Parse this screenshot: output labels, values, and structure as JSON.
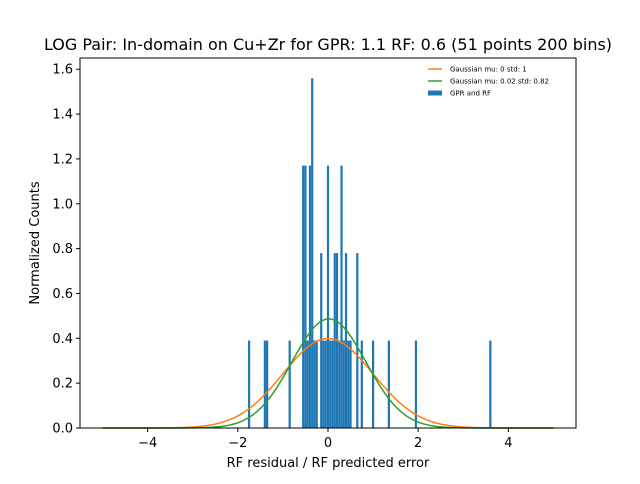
{
  "chart_data": {
    "type": "bar",
    "title": "LOG Pair: In-domain on Cu+Zr for GPR: 1.1 RF: 0.6 (51 points 200 bins)",
    "xlabel": "RF residual / RF predicted error",
    "ylabel": "Normalized Counts",
    "xlim": [
      -5.5,
      5.5
    ],
    "ylim": [
      0,
      1.65
    ],
    "xticks": [
      -4,
      -2,
      0,
      2,
      4
    ],
    "xtick_labels": [
      "−4",
      "−2",
      "0",
      "2",
      "4"
    ],
    "yticks": [
      0.0,
      0.2,
      0.4,
      0.6,
      0.8,
      1.0,
      1.2,
      1.4,
      1.6
    ],
    "ytick_labels": [
      "0.0",
      "0.2",
      "0.4",
      "0.6",
      "0.8",
      "1.0",
      "1.2",
      "1.4",
      "1.6"
    ],
    "grid": false,
    "legend_position": "top-right",
    "bar_width": 0.049,
    "histogram": {
      "name": "GPR and RF",
      "color": "#1f77b4",
      "bars": [
        {
          "x": -1.75,
          "h": 0.39
        },
        {
          "x": -1.4,
          "h": 0.39
        },
        {
          "x": -1.35,
          "h": 0.39
        },
        {
          "x": -0.85,
          "h": 0.39
        },
        {
          "x": -0.55,
          "h": 1.17
        },
        {
          "x": -0.5,
          "h": 1.17
        },
        {
          "x": -0.45,
          "h": 0.39
        },
        {
          "x": -0.4,
          "h": 1.17
        },
        {
          "x": -0.35,
          "h": 1.56
        },
        {
          "x": -0.3,
          "h": 0.39
        },
        {
          "x": -0.25,
          "h": 0.39
        },
        {
          "x": -0.15,
          "h": 0.78
        },
        {
          "x": -0.1,
          "h": 0.39
        },
        {
          "x": -0.05,
          "h": 0.39
        },
        {
          "x": 0.0,
          "h": 1.17
        },
        {
          "x": 0.05,
          "h": 0.39
        },
        {
          "x": 0.1,
          "h": 0.39
        },
        {
          "x": 0.15,
          "h": 0.78
        },
        {
          "x": 0.2,
          "h": 0.78
        },
        {
          "x": 0.25,
          "h": 0.39
        },
        {
          "x": 0.3,
          "h": 1.17
        },
        {
          "x": 0.35,
          "h": 0.39
        },
        {
          "x": 0.4,
          "h": 0.78
        },
        {
          "x": 0.45,
          "h": 0.39
        },
        {
          "x": 0.5,
          "h": 0.39
        },
        {
          "x": 0.65,
          "h": 0.78
        },
        {
          "x": 0.75,
          "h": 0.39
        },
        {
          "x": 1.0,
          "h": 0.39
        },
        {
          "x": 1.35,
          "h": 0.39
        },
        {
          "x": 1.95,
          "h": 0.39
        },
        {
          "x": 3.6,
          "h": 0.39
        }
      ]
    },
    "series": [
      {
        "name": "Gaussian mu: 0 std: 1",
        "color": "#ff7f0e",
        "mu": 0,
        "std": 1,
        "x_range": [
          -5,
          5
        ]
      },
      {
        "name": "Gaussian mu: 0.02 std: 0.82",
        "color": "#2ca02c",
        "mu": 0.02,
        "std": 0.82,
        "x_range": [
          -5,
          5
        ]
      }
    ]
  }
}
